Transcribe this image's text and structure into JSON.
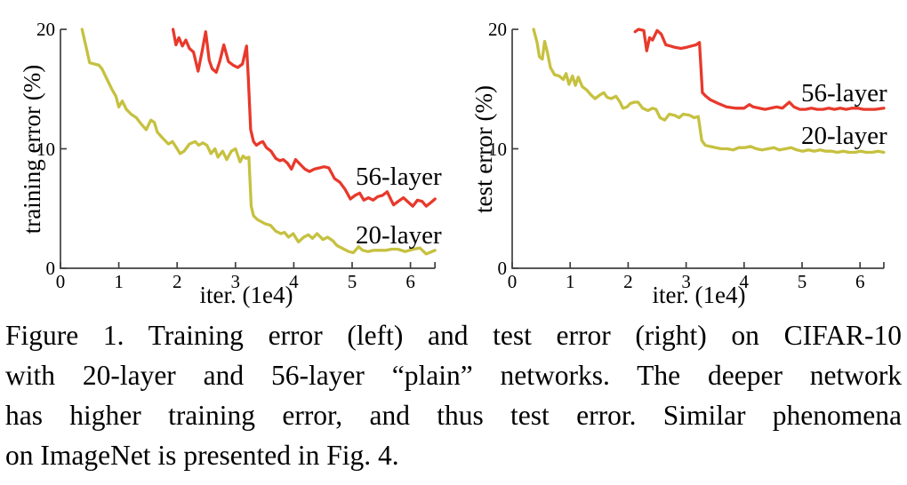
{
  "caption": {
    "lines": [
      "Figure 1. Training error (left) and test error (right) on CIFAR-10",
      "with 20-layer and 56-layer “plain” networks. The deeper network",
      "has higher training error, and thus test error. Similar phenomena",
      "on ImageNet is presented in Fig. 4."
    ]
  },
  "colors": {
    "series_56_layer": "#e8392b",
    "series_20_layer": "#c6c13f",
    "axis": "#404040",
    "text": "#000000"
  },
  "chart_data": [
    {
      "type": "line",
      "title": "",
      "xlabel": "iter. (1e4)",
      "ylabel": "training error (%)",
      "xlim": [
        0,
        6.42
      ],
      "ylim": [
        0,
        20
      ],
      "x_ticks": [
        0,
        1,
        2,
        3,
        4,
        5,
        6
      ],
      "y_ticks": [
        0,
        10,
        20
      ],
      "grid": false,
      "legend_position": "in-plot text labels, right side",
      "series": [
        {
          "name": "56-layer",
          "color": "#e8392b",
          "points": [
            [
              1.93,
              20.0
            ],
            [
              1.98,
              18.7
            ],
            [
              2.03,
              19.3
            ],
            [
              2.09,
              18.6
            ],
            [
              2.15,
              19.1
            ],
            [
              2.21,
              18.4
            ],
            [
              2.28,
              18.1
            ],
            [
              2.36,
              16.5
            ],
            [
              2.43,
              18.2
            ],
            [
              2.49,
              19.8
            ],
            [
              2.55,
              17.4
            ],
            [
              2.6,
              16.7
            ],
            [
              2.67,
              16.4
            ],
            [
              2.73,
              17.3
            ],
            [
              2.8,
              18.7
            ],
            [
              2.88,
              17.3
            ],
            [
              2.96,
              17.0
            ],
            [
              3.04,
              16.8
            ],
            [
              3.12,
              17.1
            ],
            [
              3.19,
              18.6
            ],
            [
              3.22,
              16.0
            ],
            [
              3.26,
              11.6
            ],
            [
              3.31,
              10.6
            ],
            [
              3.36,
              10.3
            ],
            [
              3.42,
              10.5
            ],
            [
              3.47,
              10.6
            ],
            [
              3.53,
              10.1
            ],
            [
              3.61,
              9.8
            ],
            [
              3.69,
              9.2
            ],
            [
              3.76,
              9.0
            ],
            [
              3.82,
              9.1
            ],
            [
              3.89,
              8.8
            ],
            [
              3.96,
              8.3
            ],
            [
              4.03,
              9.1
            ],
            [
              4.11,
              8.7
            ],
            [
              4.19,
              8.3
            ],
            [
              4.27,
              8.1
            ],
            [
              4.35,
              8.3
            ],
            [
              4.44,
              8.4
            ],
            [
              4.52,
              8.5
            ],
            [
              4.6,
              8.4
            ],
            [
              4.7,
              7.5
            ],
            [
              4.79,
              7.2
            ],
            [
              4.88,
              6.6
            ],
            [
              4.97,
              5.8
            ],
            [
              5.05,
              6.1
            ],
            [
              5.13,
              6.3
            ],
            [
              5.2,
              5.7
            ],
            [
              5.28,
              5.9
            ],
            [
              5.36,
              5.7
            ],
            [
              5.44,
              6.0
            ],
            [
              5.52,
              6.1
            ],
            [
              5.6,
              6.4
            ],
            [
              5.66,
              5.8
            ],
            [
              5.71,
              5.3
            ],
            [
              5.79,
              5.6
            ],
            [
              5.88,
              5.9
            ],
            [
              5.97,
              5.5
            ],
            [
              6.04,
              5.2
            ],
            [
              6.12,
              5.7
            ],
            [
              6.2,
              5.6
            ],
            [
              6.27,
              5.2
            ],
            [
              6.35,
              5.5
            ],
            [
              6.42,
              5.8
            ]
          ]
        },
        {
          "name": "20-layer",
          "color": "#c6c13f",
          "points": [
            [
              0.37,
              20.0
            ],
            [
              0.44,
              18.5
            ],
            [
              0.5,
              17.2
            ],
            [
              0.58,
              17.1
            ],
            [
              0.66,
              17.0
            ],
            [
              0.71,
              16.7
            ],
            [
              0.8,
              15.8
            ],
            [
              0.88,
              15.0
            ],
            [
              0.95,
              14.4
            ],
            [
              1.0,
              13.5
            ],
            [
              1.06,
              14.0
            ],
            [
              1.13,
              13.3
            ],
            [
              1.21,
              12.9
            ],
            [
              1.3,
              12.6
            ],
            [
              1.38,
              12.1
            ],
            [
              1.47,
              11.6
            ],
            [
              1.55,
              12.4
            ],
            [
              1.61,
              12.2
            ],
            [
              1.66,
              11.4
            ],
            [
              1.75,
              10.9
            ],
            [
              1.85,
              10.4
            ],
            [
              1.92,
              10.6
            ],
            [
              2.0,
              10.0
            ],
            [
              2.05,
              9.6
            ],
            [
              2.12,
              9.8
            ],
            [
              2.21,
              10.4
            ],
            [
              2.31,
              10.6
            ],
            [
              2.37,
              10.3
            ],
            [
              2.44,
              10.5
            ],
            [
              2.51,
              10.3
            ],
            [
              2.58,
              9.6
            ],
            [
              2.65,
              10.0
            ],
            [
              2.7,
              9.3
            ],
            [
              2.78,
              9.8
            ],
            [
              2.85,
              9.1
            ],
            [
              2.93,
              9.8
            ],
            [
              3.0,
              10.0
            ],
            [
              3.08,
              8.9
            ],
            [
              3.13,
              9.4
            ],
            [
              3.18,
              9.2
            ],
            [
              3.23,
              9.3
            ],
            [
              3.27,
              5.2
            ],
            [
              3.31,
              4.4
            ],
            [
              3.37,
              4.1
            ],
            [
              3.44,
              3.9
            ],
            [
              3.52,
              3.7
            ],
            [
              3.6,
              3.6
            ],
            [
              3.69,
              3.1
            ],
            [
              3.78,
              2.9
            ],
            [
              3.84,
              3.0
            ],
            [
              3.91,
              2.6
            ],
            [
              3.99,
              2.9
            ],
            [
              4.08,
              2.2
            ],
            [
              4.17,
              2.6
            ],
            [
              4.25,
              2.8
            ],
            [
              4.32,
              2.5
            ],
            [
              4.4,
              2.9
            ],
            [
              4.5,
              2.4
            ],
            [
              4.58,
              2.6
            ],
            [
              4.67,
              2.3
            ],
            [
              4.74,
              1.9
            ],
            [
              4.86,
              1.6
            ],
            [
              4.94,
              1.4
            ],
            [
              5.02,
              1.3
            ],
            [
              5.11,
              1.8
            ],
            [
              5.18,
              1.5
            ],
            [
              5.27,
              1.4
            ],
            [
              5.37,
              1.5
            ],
            [
              5.48,
              1.5
            ],
            [
              5.58,
              1.5
            ],
            [
              5.68,
              1.6
            ],
            [
              5.78,
              1.6
            ],
            [
              5.91,
              1.4
            ],
            [
              6.05,
              1.6
            ],
            [
              6.16,
              1.7
            ],
            [
              6.27,
              1.2
            ],
            [
              6.37,
              1.4
            ],
            [
              6.42,
              1.5
            ]
          ]
        }
      ]
    },
    {
      "type": "line",
      "title": "",
      "xlabel": "iter. (1e4)",
      "ylabel": "test error (%)",
      "xlim": [
        0,
        6.41
      ],
      "ylim": [
        0,
        20
      ],
      "x_ticks": [
        0,
        1,
        2,
        3,
        4,
        5,
        6
      ],
      "y_ticks": [
        0,
        10,
        20
      ],
      "grid": false,
      "legend_position": "in-plot text labels, right side",
      "series": [
        {
          "name": "56-layer",
          "color": "#e8392b",
          "points": [
            [
              2.12,
              19.8
            ],
            [
              2.18,
              20.0
            ],
            [
              2.27,
              19.9
            ],
            [
              2.32,
              18.2
            ],
            [
              2.37,
              19.3
            ],
            [
              2.42,
              19.1
            ],
            [
              2.5,
              19.9
            ],
            [
              2.57,
              19.6
            ],
            [
              2.65,
              18.7
            ],
            [
              2.73,
              18.6
            ],
            [
              2.8,
              18.5
            ],
            [
              2.91,
              18.4
            ],
            [
              3.01,
              18.5
            ],
            [
              3.09,
              18.6
            ],
            [
              3.17,
              18.7
            ],
            [
              3.23,
              18.9
            ],
            [
              3.28,
              14.7
            ],
            [
              3.34,
              14.4
            ],
            [
              3.42,
              14.1
            ],
            [
              3.55,
              13.8
            ],
            [
              3.7,
              13.5
            ],
            [
              3.85,
              13.4
            ],
            [
              4.0,
              13.4
            ],
            [
              4.09,
              13.7
            ],
            [
              4.16,
              13.5
            ],
            [
              4.26,
              13.4
            ],
            [
              4.36,
              13.3
            ],
            [
              4.46,
              13.4
            ],
            [
              4.56,
              13.5
            ],
            [
              4.66,
              13.4
            ],
            [
              4.78,
              13.9
            ],
            [
              4.86,
              13.5
            ],
            [
              4.96,
              13.3
            ],
            [
              5.06,
              13.3
            ],
            [
              5.16,
              13.4
            ],
            [
              5.26,
              13.3
            ],
            [
              5.36,
              13.3
            ],
            [
              5.46,
              13.4
            ],
            [
              5.56,
              13.3
            ],
            [
              5.66,
              13.4
            ],
            [
              5.76,
              13.3
            ],
            [
              5.86,
              13.4
            ],
            [
              5.96,
              13.4
            ],
            [
              6.06,
              13.3
            ],
            [
              6.16,
              13.3
            ],
            [
              6.26,
              13.3
            ],
            [
              6.41,
              13.4
            ]
          ]
        },
        {
          "name": "20-layer",
          "color": "#c6c13f",
          "points": [
            [
              0.37,
              20.0
            ],
            [
              0.43,
              18.9
            ],
            [
              0.47,
              17.7
            ],
            [
              0.52,
              17.5
            ],
            [
              0.56,
              19.0
            ],
            [
              0.61,
              18.0
            ],
            [
              0.66,
              16.8
            ],
            [
              0.73,
              16.2
            ],
            [
              0.81,
              16.1
            ],
            [
              0.88,
              15.8
            ],
            [
              0.93,
              16.3
            ],
            [
              0.98,
              15.4
            ],
            [
              1.04,
              16.1
            ],
            [
              1.09,
              15.3
            ],
            [
              1.14,
              16.0
            ],
            [
              1.21,
              15.2
            ],
            [
              1.29,
              14.9
            ],
            [
              1.36,
              14.5
            ],
            [
              1.43,
              14.2
            ],
            [
              1.51,
              14.5
            ],
            [
              1.58,
              14.7
            ],
            [
              1.64,
              14.3
            ],
            [
              1.71,
              14.2
            ],
            [
              1.79,
              14.4
            ],
            [
              1.86,
              13.9
            ],
            [
              1.91,
              13.4
            ],
            [
              1.98,
              13.5
            ],
            [
              2.04,
              13.8
            ],
            [
              2.11,
              13.9
            ],
            [
              2.17,
              13.9
            ],
            [
              2.25,
              13.4
            ],
            [
              2.34,
              13.2
            ],
            [
              2.42,
              13.4
            ],
            [
              2.48,
              13.3
            ],
            [
              2.55,
              12.6
            ],
            [
              2.63,
              12.4
            ],
            [
              2.71,
              12.9
            ],
            [
              2.8,
              12.8
            ],
            [
              2.88,
              12.6
            ],
            [
              2.95,
              12.9
            ],
            [
              3.06,
              12.8
            ],
            [
              3.14,
              12.6
            ],
            [
              3.21,
              12.7
            ],
            [
              3.27,
              10.7
            ],
            [
              3.33,
              10.3
            ],
            [
              3.41,
              10.2
            ],
            [
              3.51,
              10.1
            ],
            [
              3.61,
              10.0
            ],
            [
              3.71,
              10.0
            ],
            [
              3.81,
              9.9
            ],
            [
              3.91,
              10.1
            ],
            [
              4.01,
              10.1
            ],
            [
              4.11,
              10.2
            ],
            [
              4.21,
              10.0
            ],
            [
              4.31,
              9.9
            ],
            [
              4.41,
              10.0
            ],
            [
              4.51,
              10.1
            ],
            [
              4.61,
              9.9
            ],
            [
              4.71,
              10.0
            ],
            [
              4.81,
              10.1
            ],
            [
              4.91,
              9.9
            ],
            [
              5.01,
              9.8
            ],
            [
              5.11,
              9.9
            ],
            [
              5.21,
              9.8
            ],
            [
              5.31,
              9.9
            ],
            [
              5.41,
              9.8
            ],
            [
              5.51,
              9.8
            ],
            [
              5.61,
              9.7
            ],
            [
              5.71,
              9.8
            ],
            [
              5.81,
              9.7
            ],
            [
              5.91,
              9.7
            ],
            [
              6.01,
              9.8
            ],
            [
              6.11,
              9.7
            ],
            [
              6.21,
              9.7
            ],
            [
              6.31,
              9.8
            ],
            [
              6.41,
              9.7
            ]
          ]
        }
      ]
    }
  ]
}
